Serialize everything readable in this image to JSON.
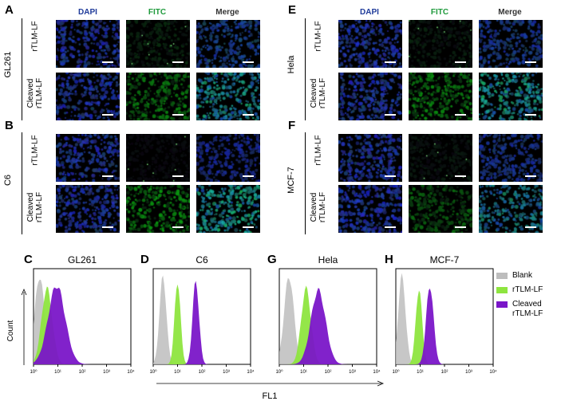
{
  "figure": {
    "columns": [
      "DAPI",
      "FITC",
      "Merge"
    ],
    "column_colors": {
      "DAPI": "#1f3b9a",
      "FITC": "#1f9a3c",
      "Merge": "#333333"
    },
    "row_labels": {
      "untreated": "rTLM-LF",
      "cleaved": "Cleaved\nrTLM-LF"
    },
    "microscopy_panels": [
      {
        "letter": "A",
        "cell_line": "GL261"
      },
      {
        "letter": "B",
        "cell_line": "C6"
      },
      {
        "letter": "E",
        "cell_line": "Hela"
      },
      {
        "letter": "F",
        "cell_line": "MCF-7"
      }
    ],
    "fitc_intensity": {
      "GL261": {
        "untreated": 0.25,
        "cleaved": 0.7
      },
      "C6": {
        "untreated": 0.08,
        "cleaved": 0.8
      },
      "Hela": {
        "untreated": 0.2,
        "cleaved": 0.75
      },
      "MCF-7": {
        "untreated": 0.15,
        "cleaved": 0.55
      }
    }
  },
  "chart_data": {
    "type": "area",
    "x_scale": "log10",
    "xlim_log10": [
      0,
      4
    ],
    "ylabel": "Count",
    "xlabel": "FL1",
    "tick_labels": [
      "10⁰",
      "10¹",
      "10²",
      "10³",
      "10⁴"
    ],
    "legend": [
      {
        "name": "Blank",
        "color": "#bdbdbd"
      },
      {
        "name": "rTLM-LF",
        "color": "#8ee53f"
      },
      {
        "name": "Cleaved\nrTLM-LF",
        "color": "#7a16c8"
      }
    ],
    "panels": [
      {
        "letter": "C",
        "title": "GL261",
        "series": [
          {
            "name": "Blank",
            "center_log10": 0.25,
            "width": 0.2,
            "height": 0.95
          },
          {
            "name": "rTLM-LF",
            "center_log10": 0.55,
            "width": 0.22,
            "height": 0.82
          },
          {
            "name": "Cleaved rTLM-LF",
            "center_log10": 0.95,
            "width": 0.35,
            "height": 0.85
          }
        ]
      },
      {
        "letter": "D",
        "title": "C6",
        "series": [
          {
            "name": "Blank",
            "center_log10": 0.4,
            "width": 0.14,
            "height": 0.95
          },
          {
            "name": "rTLM-LF",
            "center_log10": 1.0,
            "width": 0.12,
            "height": 0.9
          },
          {
            "name": "Cleaved rTLM-LF",
            "center_log10": 1.75,
            "width": 0.13,
            "height": 0.9
          }
        ]
      },
      {
        "letter": "G",
        "title": "Hela",
        "series": [
          {
            "name": "Blank",
            "center_log10": 0.4,
            "width": 0.2,
            "height": 0.95
          },
          {
            "name": "rTLM-LF",
            "center_log10": 1.1,
            "width": 0.2,
            "height": 0.82
          },
          {
            "name": "Cleaved rTLM-LF",
            "center_log10": 1.6,
            "width": 0.3,
            "height": 0.8
          }
        ]
      },
      {
        "letter": "H",
        "title": "MCF-7",
        "series": [
          {
            "name": "Blank",
            "center_log10": 0.25,
            "width": 0.15,
            "height": 0.95
          },
          {
            "name": "rTLM-LF",
            "center_log10": 0.95,
            "width": 0.13,
            "height": 0.82
          },
          {
            "name": "Cleaved rTLM-LF",
            "center_log10": 1.4,
            "width": 0.15,
            "height": 0.85
          }
        ]
      }
    ]
  }
}
